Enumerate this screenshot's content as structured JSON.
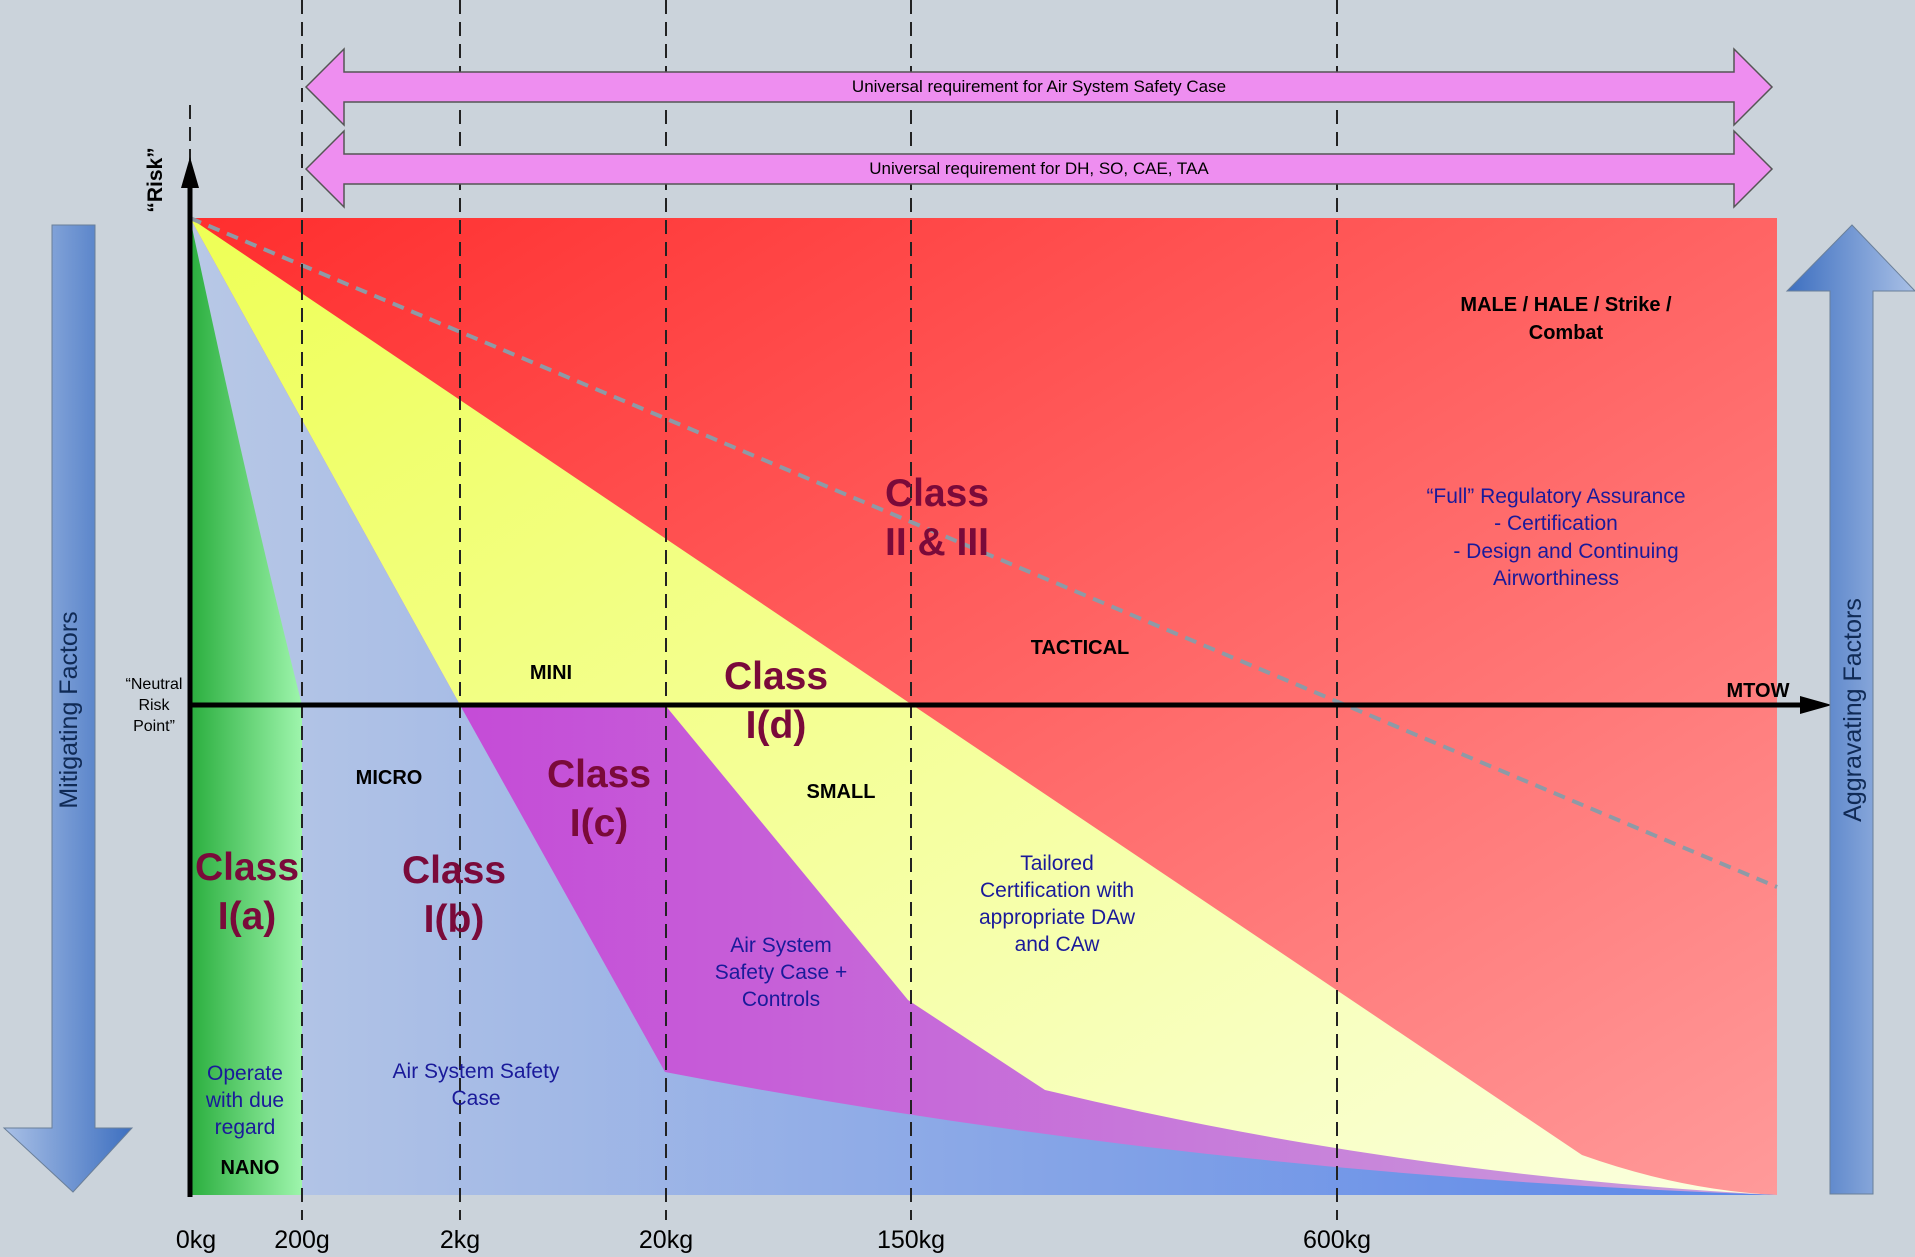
{
  "top_arrows": {
    "safety_case": "Universal requirement for Air System Safety Case",
    "dh_so": "Universal requirement for DH, SO, CAE, TAA"
  },
  "axis": {
    "y_label": "“Risk”",
    "x_label": "MTOW",
    "neutral_line1": "“Neutral",
    "neutral_line2": "Risk",
    "neutral_line3": "Point”"
  },
  "ticks": [
    "0kg",
    "200g",
    "2kg",
    "20kg",
    "150kg",
    "600kg"
  ],
  "side": {
    "mitigating": "Mitigating Factors",
    "aggravating": "Aggravating Factors"
  },
  "categories": {
    "nano": "NANO",
    "micro": "MICRO",
    "mini": "MINI",
    "small": "SMALL",
    "tactical": "TACTICAL",
    "male_line1": "MALE / HALE / Strike /",
    "male_line2": "Combat"
  },
  "classes": {
    "class_ia": [
      "Class",
      "I(a)"
    ],
    "class_ib": [
      "Class",
      "I(b)"
    ],
    "class_ic": [
      "Class",
      "I(c)"
    ],
    "class_id": [
      "Class",
      "I(d)"
    ],
    "class_ii": [
      "Class",
      "II & III"
    ]
  },
  "notes": {
    "operate": [
      "Operate",
      "with due",
      "regard"
    ],
    "safety_case": [
      "Air System Safety",
      "Case"
    ],
    "safety_controls": [
      "Air System",
      "Safety Case +",
      "Controls"
    ],
    "tailored": [
      "Tailored",
      "Certification with",
      "appropriate DAw",
      "and CAw"
    ],
    "full": [
      "“Full” Regulatory Assurance",
      "-  Certification",
      "-  Design and Continuing",
      "Airworthiness"
    ]
  },
  "colors": {
    "red": "#ff3b3b",
    "yellow": "#f2ff70",
    "purple": "#cc44d8",
    "blue": "#a9bde8",
    "green": "#5fe07a",
    "pink_arrow": "#ee8ef0",
    "class_text": "#7a0a3a",
    "note_text": "#1a1a9a",
    "side_arrow": "#4a7cc8"
  }
}
